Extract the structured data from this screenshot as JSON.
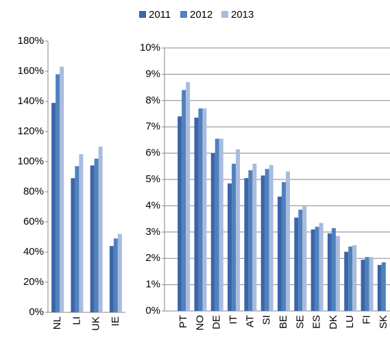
{
  "chart_data": [
    {
      "type": "bar",
      "categories": [
        "NL",
        "LI",
        "UK",
        "IE"
      ],
      "series": [
        {
          "name": "2011",
          "color": "#3c65a9",
          "values": [
            139,
            89,
            97.5,
            44
          ]
        },
        {
          "name": "2012",
          "color": "#4f81bd",
          "values": [
            158,
            97,
            102,
            49
          ]
        },
        {
          "name": "2013",
          "color": "#a9bcde",
          "values": [
            163,
            105,
            110,
            52
          ]
        }
      ],
      "ylim": [
        0,
        180
      ],
      "yticks": [
        {
          "value": 0,
          "label": "0%"
        },
        {
          "value": 20,
          "label": "20%"
        },
        {
          "value": 40,
          "label": "40%"
        },
        {
          "value": 60,
          "label": "60%"
        },
        {
          "value": 80,
          "label": "80%"
        },
        {
          "value": 100,
          "label": "100%"
        },
        {
          "value": 120,
          "label": "120%"
        },
        {
          "value": 140,
          "label": "140%"
        },
        {
          "value": 160,
          "label": "160%"
        },
        {
          "value": 180,
          "label": "180%"
        }
      ],
      "grid": false
    },
    {
      "type": "bar",
      "categories": [
        "PT",
        "NO",
        "DE",
        "IT",
        "AT",
        "SI",
        "BE",
        "SE",
        "ES",
        "DK",
        "LU",
        "FI",
        "SK"
      ],
      "series": [
        {
          "color": "#3c65a9",
          "values": [
            7.4,
            7.35,
            6.0,
            4.85,
            5.05,
            5.15,
            4.35,
            3.55,
            3.1,
            2.95,
            2.25,
            1.95,
            1.75
          ]
        },
        {
          "color": "#4f81bd",
          "values": [
            8.4,
            7.7,
            6.55,
            5.6,
            5.35,
            5.4,
            4.9,
            3.85,
            3.2,
            3.15,
            2.45,
            2.05,
            1.85
          ]
        },
        {
          "color": "#a9bcde",
          "values": [
            8.7,
            7.7,
            6.55,
            6.15,
            5.6,
            5.55,
            5.3,
            4.0,
            3.35,
            2.85,
            2.5,
            2.05,
            null
          ]
        }
      ],
      "ylim": [
        0,
        10
      ],
      "yticks": [
        {
          "value": 0,
          "label": "0%"
        },
        {
          "value": 1,
          "label": "1%"
        },
        {
          "value": 2,
          "label": "2%"
        },
        {
          "value": 3,
          "label": "3%"
        },
        {
          "value": 4,
          "label": "4%"
        },
        {
          "value": 5,
          "label": "5%"
        },
        {
          "value": 6,
          "label": "6%"
        },
        {
          "value": 7,
          "label": "7%"
        },
        {
          "value": 8,
          "label": "8%"
        },
        {
          "value": 9,
          "label": "9%"
        },
        {
          "value": 10,
          "label": "10%"
        }
      ],
      "grid": true
    }
  ]
}
